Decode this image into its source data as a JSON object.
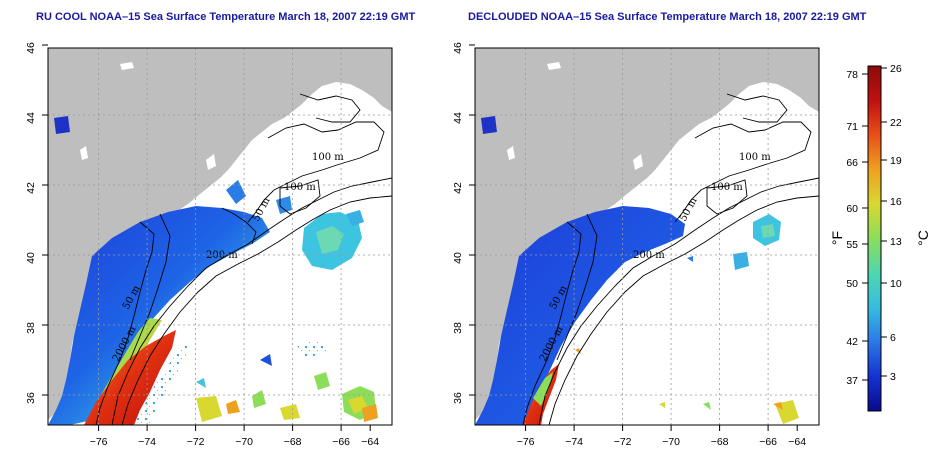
{
  "titles": {
    "left": "RU COOL NOAA–15 Sea Surface Temperature March 18, 2007 22:19 GMT",
    "right": "DECLOUDED NOAA–15 Sea Surface Temperature March 18, 2007 22:19 GMT"
  },
  "axes": {
    "x_ticks": [
      "−76",
      "−74",
      "−72",
      "−70",
      "−68",
      "−66",
      "−64"
    ],
    "y_ticks": [
      "46",
      "44",
      "42",
      "40",
      "38",
      "36"
    ]
  },
  "contour_labels": {
    "left": [
      "100 m",
      "100 m",
      "50 m",
      "200 m",
      "50 m",
      "2000 m"
    ],
    "right": [
      "100 m",
      "100 m",
      "50 m",
      "200 m",
      "50 m",
      "2000 m"
    ]
  },
  "colorbar": {
    "fahrenheit_ticks": [
      "78",
      "71",
      "66",
      "60",
      "55",
      "50",
      "42",
      "37"
    ],
    "celsius_ticks": [
      "26",
      "22",
      "19",
      "16",
      "13",
      "10",
      "6",
      "3"
    ],
    "fahrenheit_unit": "°F",
    "celsius_unit": "°C",
    "colors": [
      "#0a0a8c",
      "#1432d2",
      "#2a78e6",
      "#36bde0",
      "#4fd6b0",
      "#8cde5a",
      "#d8d830",
      "#f0a020",
      "#e85018",
      "#c01010",
      "#8c0a0a"
    ]
  },
  "colors": {
    "land": "#bebebe",
    "grid": "#9a9a9a",
    "title": "#1a1aa0"
  }
}
